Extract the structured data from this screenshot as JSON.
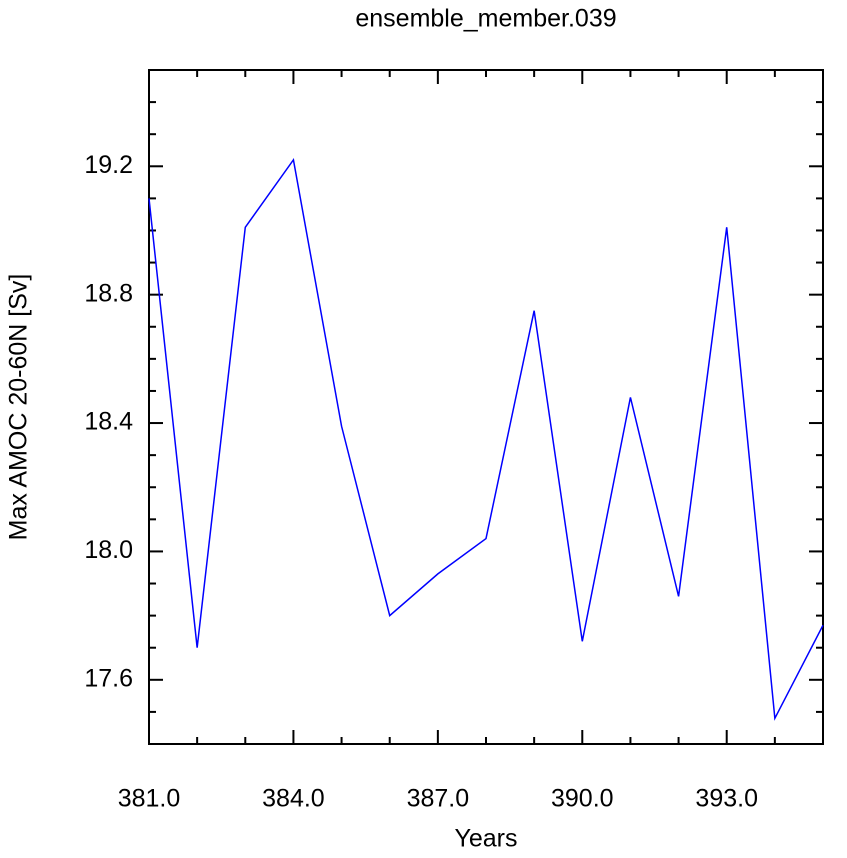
{
  "chart_data": {
    "type": "line",
    "title": "ensemble_member.039",
    "x_label": "Years",
    "y_label": "Max AMOC 20-60N [Sv]",
    "x": [
      381,
      382,
      383,
      384,
      385,
      386,
      387,
      388,
      389,
      390,
      391,
      392,
      393,
      394,
      395
    ],
    "series": [
      {
        "name": "ensemble_member.039",
        "color": "#0000ff",
        "values": [
          19.1,
          17.7,
          19.01,
          19.22,
          18.39,
          17.8,
          17.93,
          18.04,
          18.75,
          17.72,
          18.48,
          17.86,
          19.01,
          17.48,
          17.77
        ]
      }
    ],
    "xlim": [
      381,
      395
    ],
    "ylim": [
      17.4,
      19.5
    ],
    "xticks": [
      {
        "value": 381,
        "label": "381.0"
      },
      {
        "value": 384,
        "label": "384.0"
      },
      {
        "value": 387,
        "label": "387.0"
      },
      {
        "value": 390,
        "label": "390.0"
      },
      {
        "value": 393,
        "label": "393.0"
      }
    ],
    "yticks": [
      17.6,
      {
        "value": 18,
        "label": "18.0"
      },
      18.4,
      18.8,
      19.2
    ],
    "xminor_ticks": [
      382,
      383,
      385,
      386,
      388,
      389,
      391,
      392,
      394
    ],
    "yminor_ticks": [
      17.5,
      17.7,
      17.8,
      17.9,
      18.1,
      18.2,
      18.3,
      18.5,
      18.6,
      18.7,
      18.9,
      19.0,
      19.1,
      19.3,
      19.4
    ],
    "grid": false
  }
}
